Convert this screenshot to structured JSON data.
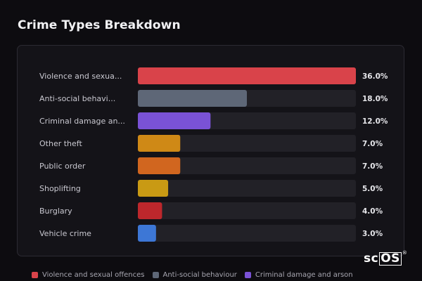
{
  "page": {
    "title": "Crime Types Breakdown"
  },
  "chart_data": {
    "type": "bar",
    "orientation": "horizontal",
    "title": "Crime Types Breakdown",
    "xlim": [
      0,
      36
    ],
    "categories": [
      "Violence and sexua...",
      "Anti-social behavi...",
      "Criminal damage an...",
      "Other theft",
      "Public order",
      "Shoplifting",
      "Burglary",
      "Vehicle crime"
    ],
    "values": [
      36.0,
      18.0,
      12.0,
      7.0,
      7.0,
      5.0,
      4.0,
      3.0
    ],
    "value_labels": [
      "36.0%",
      "18.0%",
      "12.0%",
      "7.0%",
      "7.0%",
      "5.0%",
      "4.0%",
      "3.0%"
    ],
    "colors": [
      "#d9434a",
      "#5e6777",
      "#7a52d6",
      "#cf8916",
      "#d1661f",
      "#c99a14",
      "#bd272c",
      "#3d77d6"
    ],
    "track_color": "#222127",
    "grid": false,
    "legend_position": "bottom-left",
    "legend": [
      {
        "label": "Violence and sexual offences",
        "color": "#d9434a"
      },
      {
        "label": "Anti-social behaviour",
        "color": "#5e6777"
      },
      {
        "label": "Criminal damage and arson",
        "color": "#7a52d6"
      }
    ]
  },
  "brand": {
    "prefix": "sc",
    "boxed": "OS",
    "mark": "®"
  }
}
